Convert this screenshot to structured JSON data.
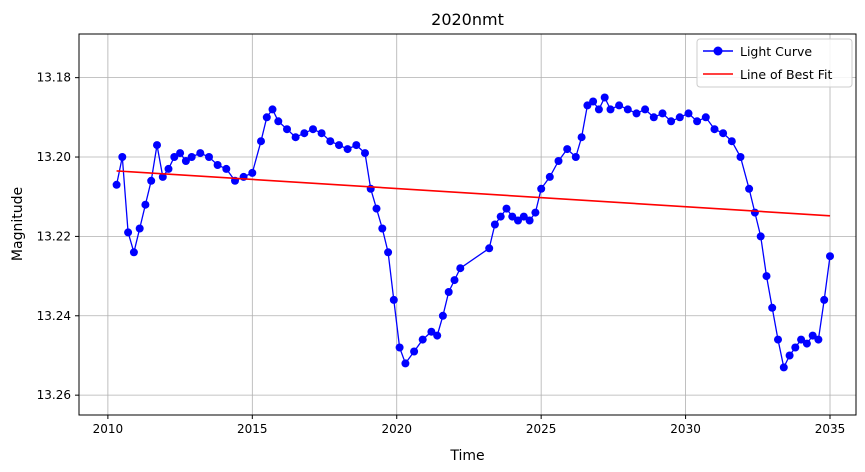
{
  "chart_data": {
    "type": "line",
    "title": "2020nmt",
    "xlabel": "Time",
    "ylabel": "Magnitude",
    "xlim": [
      2009.0,
      2035.9
    ],
    "ylim": [
      13.265,
      13.169
    ],
    "y_inverted": true,
    "grid": true,
    "legend_position": "upper right",
    "x_ticks": [
      2010,
      2015,
      2020,
      2025,
      2030,
      2035
    ],
    "x_tick_labels": [
      "2010",
      "2015",
      "2020",
      "2025",
      "2030",
      "2035"
    ],
    "y_ticks": [
      13.18,
      13.2,
      13.22,
      13.24,
      13.26
    ],
    "y_tick_labels": [
      "13.18",
      "13.20",
      "13.22",
      "13.24",
      "13.26"
    ],
    "series": [
      {
        "name": "Light Curve",
        "style": "line-with-markers",
        "color": "#0000ff",
        "x": [
          2010.3,
          2010.5,
          2010.7,
          2010.9,
          2011.1,
          2011.3,
          2011.5,
          2011.7,
          2011.9,
          2012.1,
          2012.3,
          2012.5,
          2012.7,
          2012.9,
          2013.2,
          2013.5,
          2013.8,
          2014.1,
          2014.4,
          2014.7,
          2015.0,
          2015.3,
          2015.5,
          2015.7,
          2015.9,
          2016.2,
          2016.5,
          2016.8,
          2017.1,
          2017.4,
          2017.7,
          2018.0,
          2018.3,
          2018.6,
          2018.9,
          2019.1,
          2019.3,
          2019.5,
          2019.7,
          2019.9,
          2020.1,
          2020.3,
          2020.6,
          2020.9,
          2021.2,
          2021.4,
          2021.6,
          2021.8,
          2022.0,
          2022.2,
          2023.2,
          2023.4,
          2023.6,
          2023.8,
          2024.0,
          2024.2,
          2024.4,
          2024.6,
          2024.8,
          2025.0,
          2025.3,
          2025.6,
          2025.9,
          2026.2,
          2026.4,
          2026.6,
          2026.8,
          2027.0,
          2027.2,
          2027.4,
          2027.7,
          2028.0,
          2028.3,
          2028.6,
          2028.9,
          2029.2,
          2029.5,
          2029.8,
          2030.1,
          2030.4,
          2030.7,
          2031.0,
          2031.3,
          2031.6,
          2031.9,
          2032.2,
          2032.4,
          2032.6,
          2032.8,
          2033.0,
          2033.2,
          2033.4,
          2033.6,
          2033.8,
          2034.0,
          2034.2,
          2034.4,
          2034.6,
          2034.8,
          2035.0
        ],
        "y": [
          13.207,
          13.2,
          13.219,
          13.224,
          13.218,
          13.212,
          13.206,
          13.197,
          13.205,
          13.203,
          13.2,
          13.199,
          13.201,
          13.2,
          13.199,
          13.2,
          13.202,
          13.203,
          13.206,
          13.205,
          13.204,
          13.196,
          13.19,
          13.188,
          13.191,
          13.193,
          13.195,
          13.194,
          13.193,
          13.194,
          13.196,
          13.197,
          13.198,
          13.197,
          13.199,
          13.208,
          13.213,
          13.218,
          13.224,
          13.236,
          13.248,
          13.252,
          13.249,
          13.246,
          13.244,
          13.245,
          13.24,
          13.234,
          13.231,
          13.228,
          13.223,
          13.217,
          13.215,
          13.213,
          13.215,
          13.216,
          13.215,
          13.216,
          13.214,
          13.208,
          13.205,
          13.201,
          13.198,
          13.2,
          13.195,
          13.187,
          13.186,
          13.188,
          13.185,
          13.188,
          13.187,
          13.188,
          13.189,
          13.188,
          13.19,
          13.189,
          13.191,
          13.19,
          13.189,
          13.191,
          13.19,
          13.193,
          13.194,
          13.196,
          13.2,
          13.208,
          13.214,
          13.22,
          13.23,
          13.238,
          13.246,
          13.253,
          13.25,
          13.248,
          13.246,
          13.247,
          13.245,
          13.246,
          13.236,
          13.225
        ]
      },
      {
        "name": "Line of Best Fit",
        "style": "line",
        "color": "#ff0000",
        "x": [
          2010.3,
          2035.0
        ],
        "y": [
          13.2035,
          13.2148
        ]
      }
    ]
  }
}
